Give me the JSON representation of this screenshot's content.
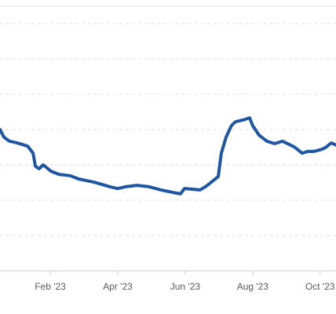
{
  "chart_data": {
    "type": "line",
    "x": [
      0.51,
      0.63,
      0.79,
      1.02,
      1.33,
      1.49,
      1.56,
      1.67,
      1.79,
      2.02,
      2.26,
      2.6,
      2.84,
      3.3,
      3.77,
      4.0,
      4.23,
      4.58,
      4.93,
      5.28,
      5.63,
      5.86,
      5.98,
      6.21,
      6.44,
      6.6,
      6.84,
      6.98,
      7.07,
      7.21,
      7.37,
      7.49,
      7.72,
      7.91,
      8.0,
      8.19,
      8.42,
      8.65,
      8.88,
      9.23,
      9.47,
      9.63,
      9.81,
      10.05,
      10.16,
      10.33,
      10.47
    ],
    "series": [
      {
        "color": "#1f56a3",
        "values": [
          4.0,
          3.78,
          3.67,
          3.62,
          3.53,
          3.33,
          2.96,
          2.89,
          3.0,
          2.82,
          2.73,
          2.69,
          2.6,
          2.51,
          2.38,
          2.33,
          2.38,
          2.42,
          2.38,
          2.29,
          2.22,
          2.18,
          2.33,
          2.31,
          2.29,
          2.38,
          2.56,
          2.67,
          3.33,
          3.78,
          4.11,
          4.22,
          4.27,
          4.33,
          4.11,
          3.84,
          3.67,
          3.6,
          3.67,
          3.51,
          3.33,
          3.38,
          3.38,
          3.44,
          3.49,
          3.62,
          3.56
        ]
      }
    ],
    "xlim": [
      0.51,
      10.47
    ],
    "xticks": [
      {
        "value": 2,
        "label": "Feb '23"
      },
      {
        "value": 4,
        "label": "Apr '23"
      },
      {
        "value": 6,
        "label": "Jun '23"
      },
      {
        "value": 8,
        "label": "Aug '23"
      },
      {
        "value": 10,
        "label": "Oct '23"
      }
    ],
    "ylim": [
      0,
      7.5
    ],
    "yticks": [
      1,
      2,
      3,
      4,
      5,
      6,
      7
    ],
    "grid": true
  }
}
